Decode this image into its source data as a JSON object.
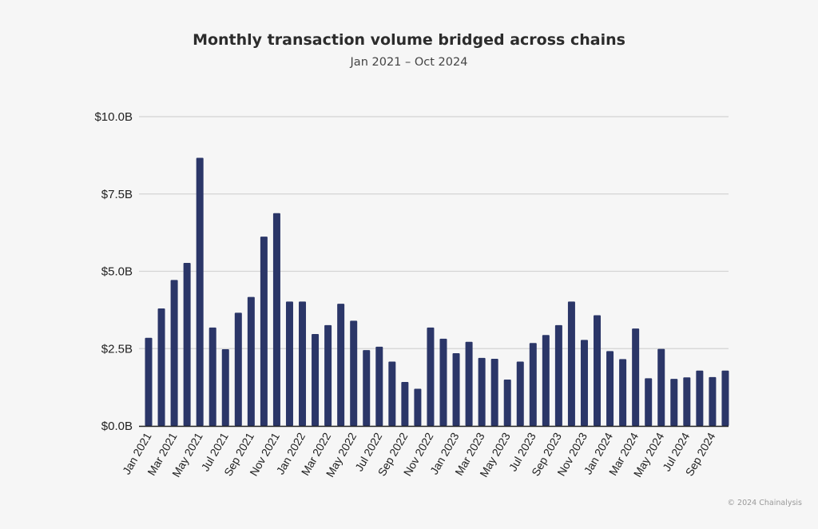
{
  "colors": {
    "background": "#f6f6f6",
    "bar": "#2b3668",
    "grid": "#d4d4d4",
    "axis": "#222222"
  },
  "chart_data": {
    "type": "bar",
    "title": "Monthly transaction volume bridged across chains",
    "subtitle": "Jan 2021 – Oct 2024",
    "xlabel": "",
    "ylabel": "",
    "ylim": [
      0,
      10
    ],
    "y_unit": "billions of USD",
    "y_ticks": [
      0,
      2.5,
      5,
      7.5,
      10
    ],
    "y_tick_labels": [
      "$0.0B",
      "$2.5B",
      "$5.0B",
      "$7.5B",
      "$10.0B"
    ],
    "grid": true,
    "legend": "none",
    "categories": [
      "Jan 2021",
      "Feb 2021",
      "Mar 2021",
      "Apr 2021",
      "May 2021",
      "Jun 2021",
      "Jul 2021",
      "Aug 2021",
      "Sep 2021",
      "Oct 2021",
      "Nov 2021",
      "Dec 2021",
      "Jan 2022",
      "Feb 2022",
      "Mar 2022",
      "Apr 2022",
      "May 2022",
      "Jun 2022",
      "Jul 2022",
      "Aug 2022",
      "Sep 2022",
      "Oct 2022",
      "Nov 2022",
      "Dec 2022",
      "Jan 2023",
      "Feb 2023",
      "Mar 2023",
      "Apr 2023",
      "May 2023",
      "Jun 2023",
      "Jul 2023",
      "Aug 2023",
      "Sep 2023",
      "Oct 2023",
      "Nov 2023",
      "Dec 2023",
      "Jan 2024",
      "Feb 2024",
      "Mar 2024",
      "Apr 2024",
      "May 2024",
      "Jun 2024",
      "Jul 2024",
      "Aug 2024",
      "Sep 2024",
      "Oct 2024"
    ],
    "x_tick_labels": [
      "Jan 2021",
      "Mar 2021",
      "May 2021",
      "Jul 2021",
      "Sep 2021",
      "Nov 2021",
      "Jan 2022",
      "Mar 2022",
      "May 2022",
      "Jul 2022",
      "Sep 2022",
      "Nov 2022",
      "Jan 2023",
      "Mar 2023",
      "May 2023",
      "Jul 2023",
      "Sep 2023",
      "Nov 2023",
      "Jan 2024",
      "Mar 2024",
      "May 2024",
      "Jul 2024",
      "Sep 2024"
    ],
    "values": [
      2.85,
      3.8,
      4.72,
      5.27,
      8.67,
      3.18,
      2.48,
      3.66,
      4.17,
      6.12,
      6.88,
      4.02,
      4.02,
      2.97,
      3.26,
      3.95,
      3.4,
      2.45,
      2.56,
      2.08,
      1.42,
      1.2,
      3.18,
      2.82,
      2.35,
      2.72,
      2.2,
      2.17,
      1.5,
      2.08,
      2.68,
      2.94,
      3.26,
      4.02,
      2.78,
      3.58,
      2.42,
      2.16,
      3.15,
      1.54,
      2.49,
      1.52,
      1.57,
      1.79,
      1.58,
      1.79
    ]
  },
  "footer": {
    "copyright": "© 2024 Chainalysis"
  }
}
